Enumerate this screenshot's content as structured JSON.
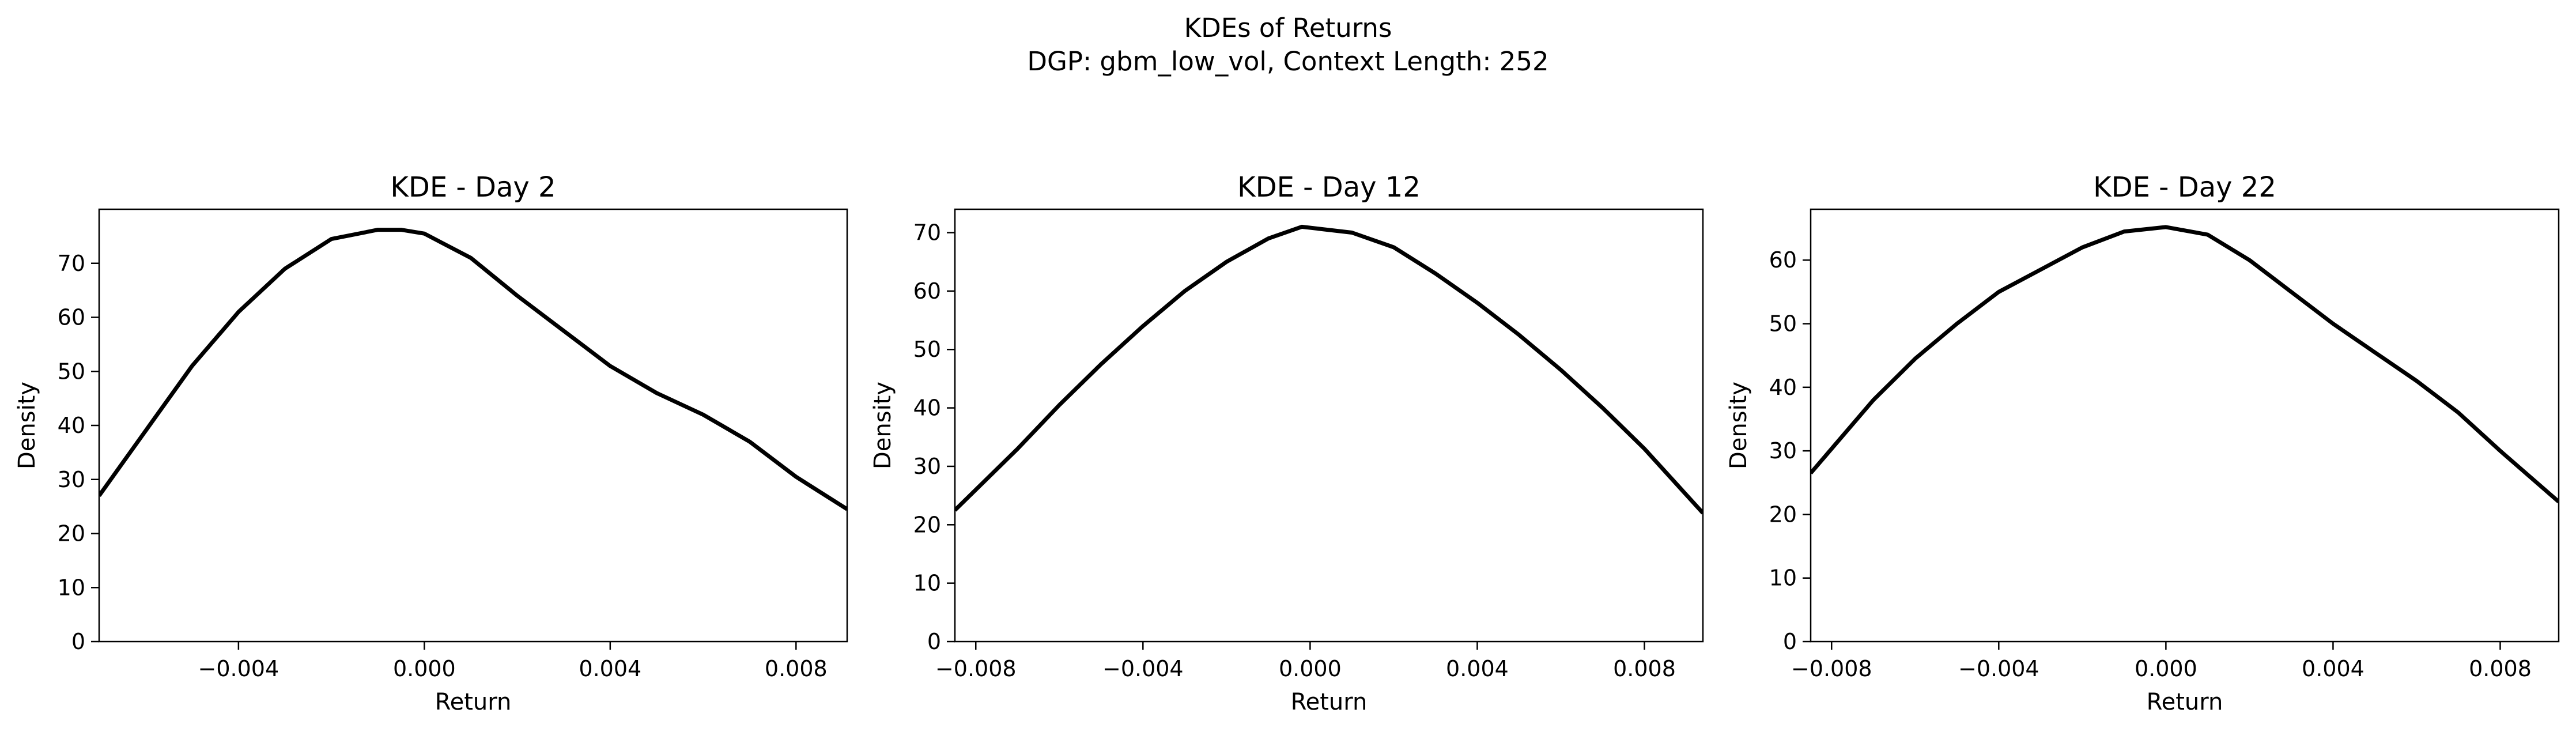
{
  "figure": {
    "title_line1": "KDEs of Returns",
    "title_line2": "DGP: gbm_low_vol, Context Length: 252"
  },
  "chart_data": [
    {
      "type": "line",
      "title": "KDE - Day 2",
      "xlabel": "Return",
      "ylabel": "Density",
      "xlim": [
        -0.007,
        0.0091
      ],
      "ylim": [
        0,
        80
      ],
      "xticks": [
        -0.004,
        0.0,
        0.004,
        0.008
      ],
      "xtick_labels": [
        "−0.004",
        "0.000",
        "0.004",
        "0.008"
      ],
      "yticks": [
        0,
        10,
        20,
        30,
        40,
        50,
        60,
        70
      ],
      "ytick_labels": [
        "0",
        "10",
        "20",
        "30",
        "40",
        "50",
        "60",
        "70"
      ],
      "grid": false,
      "series": [
        {
          "color": "#000000",
          "x": [
            -0.007,
            -0.006,
            -0.005,
            -0.004,
            -0.003,
            -0.002,
            -0.001,
            -0.0005,
            0.0,
            0.001,
            0.002,
            0.003,
            0.004,
            0.005,
            0.006,
            0.007,
            0.008,
            0.0091
          ],
          "y": [
            27,
            39,
            51,
            61,
            69,
            74.5,
            76.2,
            76.2,
            75.5,
            71,
            64,
            57.5,
            51,
            46,
            42,
            37,
            30.5,
            24.5
          ]
        }
      ]
    },
    {
      "type": "line",
      "title": "KDE - Day 12",
      "xlabel": "Return",
      "ylabel": "Density",
      "xlim": [
        -0.0085,
        0.0094
      ],
      "ylim": [
        0,
        74
      ],
      "xticks": [
        -0.008,
        -0.004,
        0.0,
        0.004,
        0.008
      ],
      "xtick_labels": [
        "−0.008",
        "−0.004",
        "0.000",
        "0.004",
        "0.008"
      ],
      "yticks": [
        0,
        10,
        20,
        30,
        40,
        50,
        60,
        70
      ],
      "ytick_labels": [
        "0",
        "10",
        "20",
        "30",
        "40",
        "50",
        "60",
        "70"
      ],
      "grid": false,
      "series": [
        {
          "color": "#000000",
          "x": [
            -0.0085,
            -0.007,
            -0.006,
            -0.005,
            -0.004,
            -0.003,
            -0.002,
            -0.001,
            -0.0002,
            0.001,
            0.002,
            0.003,
            0.004,
            0.005,
            0.006,
            0.007,
            0.008,
            0.0094
          ],
          "y": [
            22.5,
            33,
            40.5,
            47.5,
            54,
            60,
            65,
            69,
            71,
            70,
            67.5,
            63,
            58,
            52.5,
            46.5,
            40,
            33,
            22
          ]
        }
      ]
    },
    {
      "type": "line",
      "title": "KDE - Day 22",
      "xlabel": "Return",
      "ylabel": "Density",
      "xlim": [
        -0.0085,
        0.0094
      ],
      "ylim": [
        0,
        68
      ],
      "xticks": [
        -0.008,
        -0.004,
        0.0,
        0.004,
        0.008
      ],
      "xtick_labels": [
        "−0.008",
        "−0.004",
        "0.000",
        "0.004",
        "0.008"
      ],
      "yticks": [
        0,
        10,
        20,
        30,
        40,
        50,
        60
      ],
      "ytick_labels": [
        "0",
        "10",
        "20",
        "30",
        "40",
        "50",
        "60"
      ],
      "grid": false,
      "series": [
        {
          "color": "#000000",
          "x": [
            -0.0085,
            -0.007,
            -0.006,
            -0.005,
            -0.004,
            -0.003,
            -0.002,
            -0.001,
            0.0,
            0.001,
            0.002,
            0.003,
            0.004,
            0.005,
            0.006,
            0.007,
            0.008,
            0.0094
          ],
          "y": [
            26.5,
            38,
            44.5,
            50,
            55,
            58.5,
            62,
            64.5,
            65.2,
            64,
            60,
            55,
            50,
            45.5,
            41,
            36,
            30,
            22
          ]
        }
      ]
    }
  ]
}
